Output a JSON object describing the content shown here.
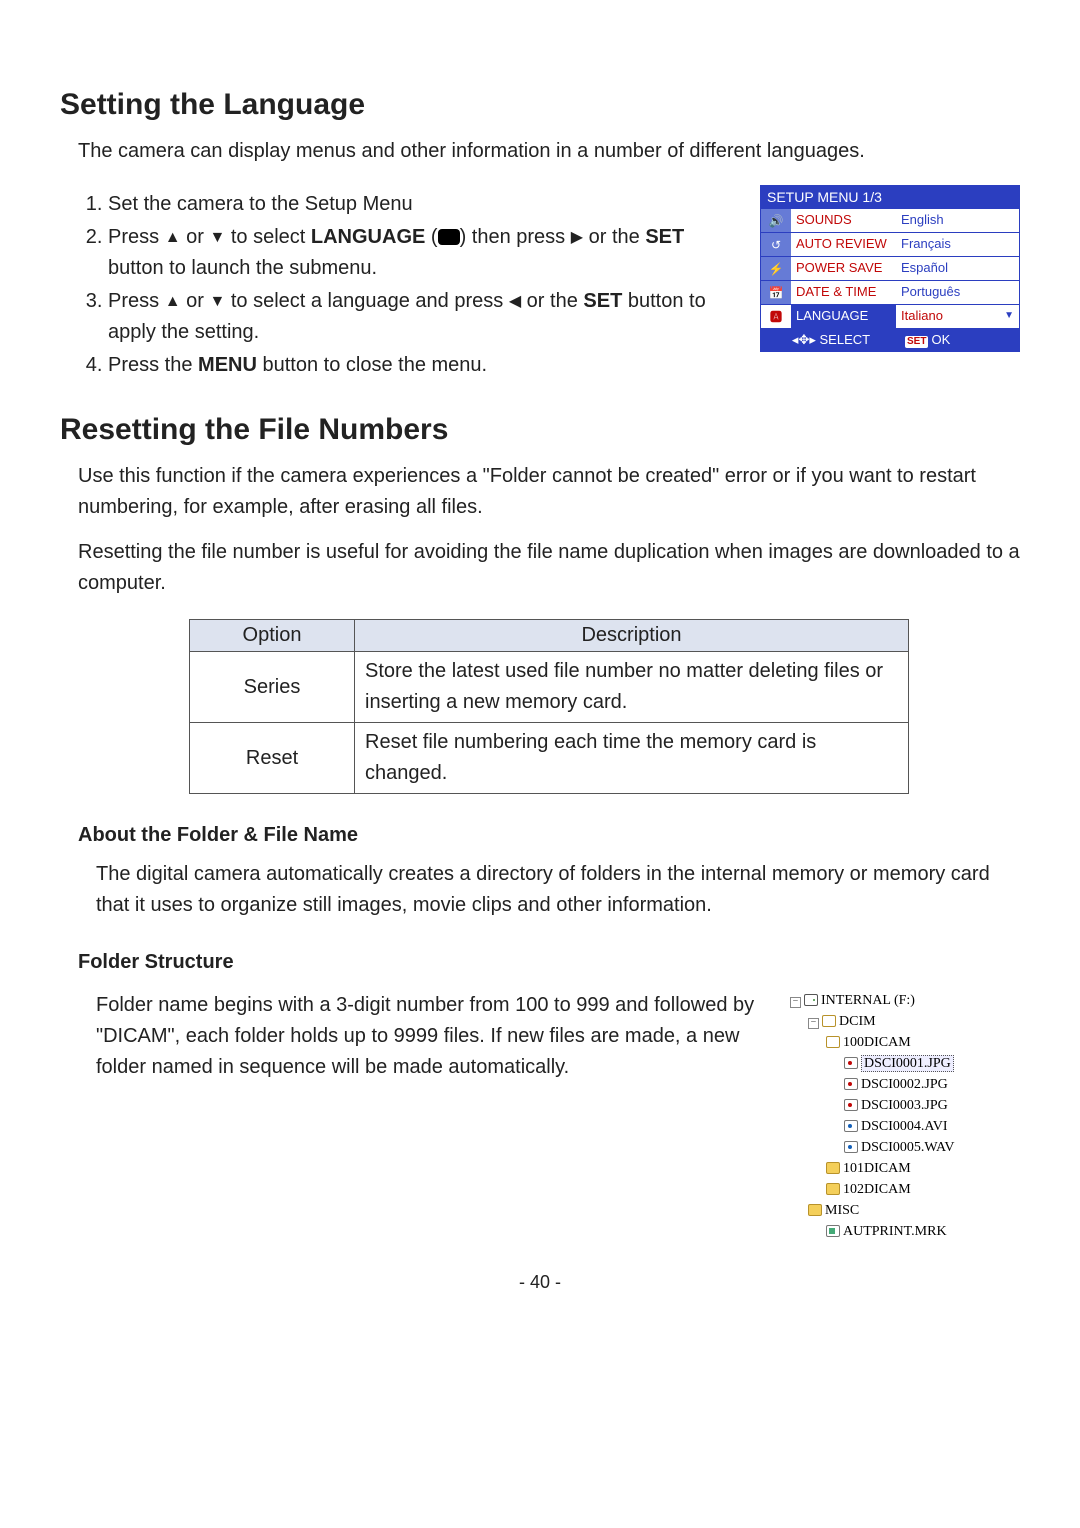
{
  "sections": {
    "set_lang": {
      "heading": "Setting the Language",
      "intro": "The camera can display menus and other information in a number of different languages.",
      "steps": {
        "s1": "Set the camera to the Setup Menu",
        "s2a": "Press ",
        "s2b": " or ",
        "s2c": " to select ",
        "s2_lang": "LANGUAGE",
        "s2d": " (",
        "s2e": ") then press ",
        "s2f": " or the ",
        "s2_set": "SET",
        "s2g": " button to launch the submenu.",
        "s3a": "Press ",
        "s3b": " or ",
        "s3c": " to select a language and press ",
        "s3d": " or the ",
        "s3_set": "SET",
        "s3e": " button to apply the setting.",
        "s4a": "Press the ",
        "s4_menu": "MENU",
        "s4b": " button to close the menu."
      }
    },
    "reset_filenum": {
      "heading": "Resetting the File Numbers",
      "para1": "Use this function if the camera experiences a \"Folder cannot be created\" error or if you want to restart numbering, for example, after erasing all files.",
      "para2": "Resetting the file number is useful for avoiding the file name duplication when images are downloaded to a computer.",
      "table": {
        "head_option": "Option",
        "head_desc": "Description",
        "rows": [
          {
            "option": "Series",
            "desc": "Store the latest used file number no matter deleting files or inserting a new memory card."
          },
          {
            "option": "Reset",
            "desc": "Reset file numbering each time the memory card is changed."
          }
        ]
      }
    },
    "folder_file": {
      "sub1": "About the Folder & File Name",
      "para1": "The digital camera automatically creates a directory of folders in the internal memory or memory card that it uses to organize still images, movie clips and other information.",
      "sub2": "Folder Structure",
      "para2": "Folder name begins with a 3-digit number from 100 to 999 and followed by \"DICAM\", each folder holds up to 9999 files. If new files are made, a new folder named in sequence will be made automatically."
    }
  },
  "setup_menu": {
    "title": "SETUP MENU 1/3",
    "rows": [
      {
        "label": "SOUNDS",
        "value": "English",
        "sel": false
      },
      {
        "label": "AUTO REVIEW",
        "value": "Français",
        "sel": false
      },
      {
        "label": "POWER SAVE",
        "value": "Español",
        "sel": false
      },
      {
        "label": "DATE & TIME",
        "value": "Português",
        "sel": false
      },
      {
        "label": "LANGUAGE",
        "value": "Italiano",
        "sel": true
      }
    ],
    "footer_left": "SELECT",
    "footer_set": "SET",
    "footer_ok": "OK"
  },
  "tree": {
    "root": "INTERNAL (F:)",
    "dcim": "DCIM",
    "f100": "100DICAM",
    "files100": [
      "DSCI0001.JPG",
      "DSCI0002.JPG",
      "DSCI0003.JPG",
      "DSCI0004.AVI",
      "DSCI0005.WAV"
    ],
    "f101": "101DICAM",
    "f102": "102DICAM",
    "misc": "MISC",
    "autprint": "AUTPRINT.MRK"
  },
  "page_number": "- 40 -",
  "colors": {
    "menu_blue": "#2b3ec0",
    "menu_red": "#c10808",
    "table_header_bg": "#dde3ef"
  }
}
